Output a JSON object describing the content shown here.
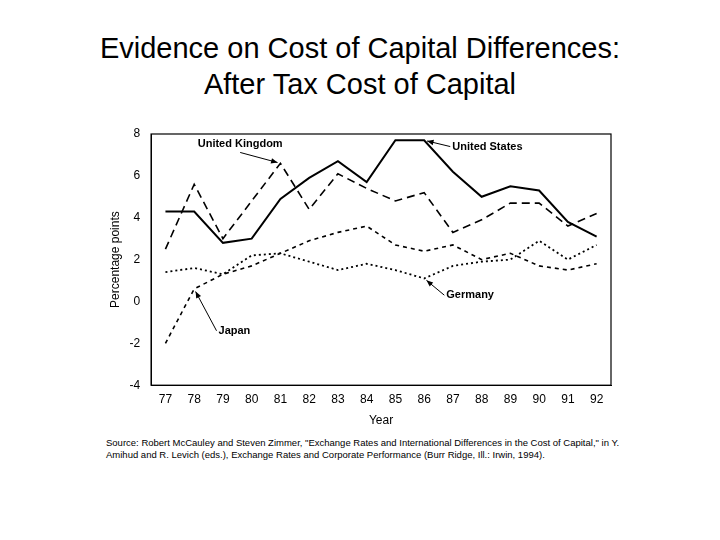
{
  "chart_data": {
    "type": "line",
    "title": "Evidence on Cost of Capital Differences:",
    "subtitle": "After Tax Cost of Capital",
    "x_label": "Year",
    "y_label": "Percentage points",
    "source": "Source: Robert McCauley and Steven Zimmer, \"Exchange Rates and International Differences in the Cost of Capital,\" in Y. Amihud and R. Levich (eds.), Exchange Rates and Corporate Performance (Burr Ridge, Ill.: Irwin, 1994).",
    "categories": [
      "77",
      "78",
      "79",
      "80",
      "81",
      "82",
      "83",
      "84",
      "85",
      "86",
      "87",
      "88",
      "89",
      "90",
      "91",
      "92"
    ],
    "series": [
      {
        "name": "United States",
        "color": "#000000",
        "line_style": "solid",
        "values": [
          4.3,
          4.3,
          2.8,
          3.0,
          4.9,
          5.9,
          6.7,
          5.7,
          7.7,
          7.7,
          6.2,
          5.0,
          5.5,
          5.3,
          3.8,
          3.1
        ]
      },
      {
        "name": "United Kingdom",
        "color": "#000000",
        "line_style": "dashed",
        "values": [
          2.5,
          5.6,
          3.0,
          4.8,
          6.6,
          4.4,
          6.1,
          5.4,
          4.8,
          5.2,
          3.3,
          3.9,
          4.7,
          4.7,
          3.6,
          4.2
        ]
      },
      {
        "name": "Japan",
        "color": "#000000",
        "line_style": "dashed",
        "values": [
          -2.0,
          0.6,
          1.3,
          1.7,
          2.3,
          2.9,
          3.3,
          3.6,
          2.7,
          2.4,
          2.7,
          2.0,
          2.3,
          1.7,
          1.5,
          1.8
        ]
      },
      {
        "name": "Germany",
        "color": "#000000",
        "line_style": "dotted",
        "values": [
          1.4,
          1.6,
          1.3,
          2.2,
          2.3,
          1.9,
          1.5,
          1.8,
          1.5,
          1.1,
          1.7,
          1.9,
          2.0,
          2.9,
          2.0,
          2.7
        ]
      }
    ],
    "ylim": [
      -4,
      8
    ],
    "yticks": [
      -4,
      -2,
      0,
      2,
      4,
      6,
      8
    ],
    "grid": false,
    "legend": "none"
  }
}
